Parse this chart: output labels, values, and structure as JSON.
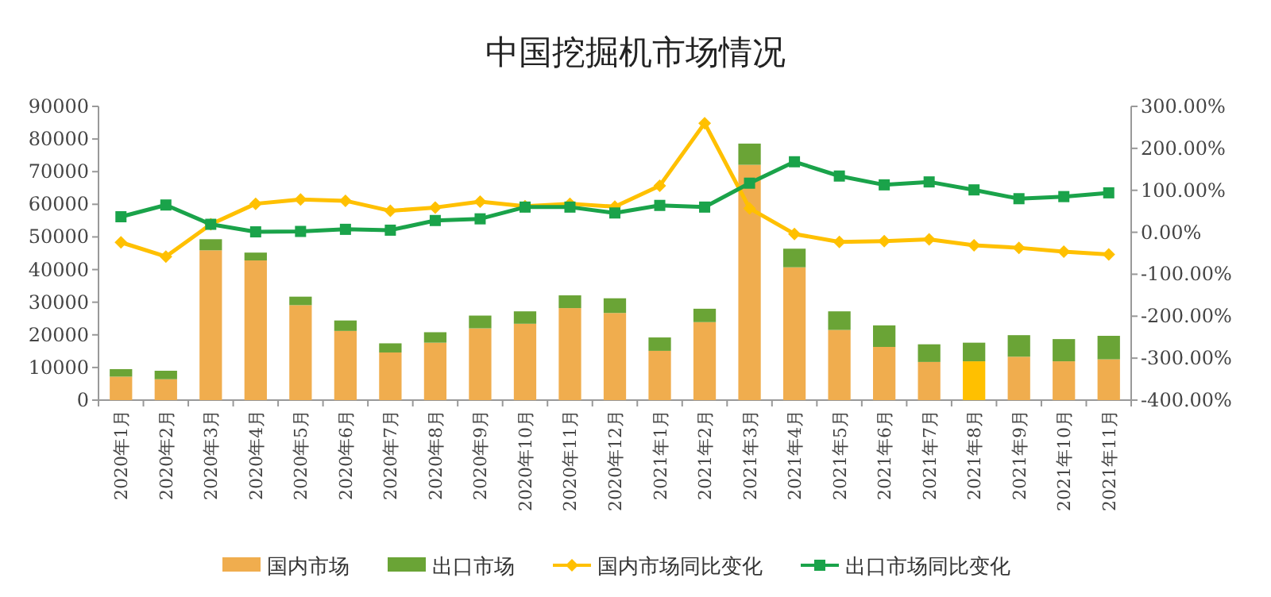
{
  "chart_data": {
    "type": "bar",
    "title": "中国挖掘机市场情况",
    "stacked": true,
    "legend": "bottom",
    "grid": false,
    "categories": [
      "2020年1月",
      "2020年2月",
      "2020年3月",
      "2020年4月",
      "2020年5月",
      "2020年6月",
      "2020年7月",
      "2020年8月",
      "2020年9月",
      "2020年10月",
      "2020年11月",
      "2020年12月",
      "2021年1月",
      "2021年2月",
      "2021年3月",
      "2021年4月",
      "2021年5月",
      "2021年6月",
      "2021年7月",
      "2021年8月",
      "2021年9月",
      "2021年10月",
      "2021年11月"
    ],
    "ylim": [
      0,
      90000
    ],
    "yticks": [
      0,
      10000,
      20000,
      30000,
      40000,
      50000,
      60000,
      70000,
      80000,
      90000
    ],
    "y2lim": [
      -400,
      300
    ],
    "y2ticks": [
      {
        "value": -400,
        "label": "-400.00%"
      },
      {
        "value": -300,
        "label": "-300.00%"
      },
      {
        "value": -200,
        "label": "-200.00%"
      },
      {
        "value": -100,
        "label": "-100.00%"
      },
      {
        "value": 0,
        "label": "0.00%"
      },
      {
        "value": 100,
        "label": "100.00%"
      },
      {
        "value": 200,
        "label": "200.00%"
      },
      {
        "value": 300,
        "label": "300.00%"
      }
    ],
    "series": [
      {
        "name": "国内市场",
        "type": "bar",
        "color": "#f0ad4e",
        "colors": [
          "#f0ad4e",
          "#f0ad4e",
          "#f0ad4e",
          "#f0ad4e",
          "#f0ad4e",
          "#f0ad4e",
          "#f0ad4e",
          "#f0ad4e",
          "#f0ad4e",
          "#f0ad4e",
          "#f0ad4e",
          "#f0ad4e",
          "#f0ad4e",
          "#f0ad4e",
          "#f0ad4e",
          "#f0ad4e",
          "#f0ad4e",
          "#f0ad4e",
          "#f0ad4e",
          "#ffc000",
          "#f0ad4e",
          "#f0ad4e",
          "#f0ad4e"
        ],
        "values": [
          7200,
          6400,
          45900,
          42800,
          29100,
          21200,
          14600,
          17600,
          22000,
          23400,
          28200,
          26700,
          15100,
          23900,
          72100,
          40700,
          21500,
          16300,
          11700,
          11900,
          13300,
          11900,
          12500
        ]
      },
      {
        "name": "出口市场",
        "type": "bar",
        "color": "#6aa436",
        "values": [
          2300,
          2600,
          3400,
          2400,
          2600,
          3200,
          2800,
          3200,
          3900,
          3800,
          3900,
          4500,
          4100,
          4100,
          6500,
          5700,
          5700,
          6600,
          5400,
          5700,
          6600,
          6800,
          7200
        ]
      },
      {
        "name": "国内市场同比变化",
        "type": "line",
        "axis": "y2",
        "color": "#ffc000",
        "marker": "diamond",
        "values": [
          -24,
          -58,
          19,
          68,
          78,
          75,
          51,
          59,
          73,
          62,
          68,
          61,
          111,
          260,
          57,
          -4,
          -23,
          -21,
          -17,
          -31,
          -37,
          -46,
          -53
        ]
      },
      {
        "name": "出口市场同比变化",
        "type": "line",
        "axis": "y2",
        "color": "#1aa34a",
        "marker": "square",
        "values": [
          37,
          65,
          19,
          1,
          2,
          7,
          5,
          28,
          32,
          60,
          60,
          46,
          64,
          60,
          117,
          168,
          134,
          113,
          120,
          101,
          80,
          85,
          94
        ]
      }
    ]
  }
}
